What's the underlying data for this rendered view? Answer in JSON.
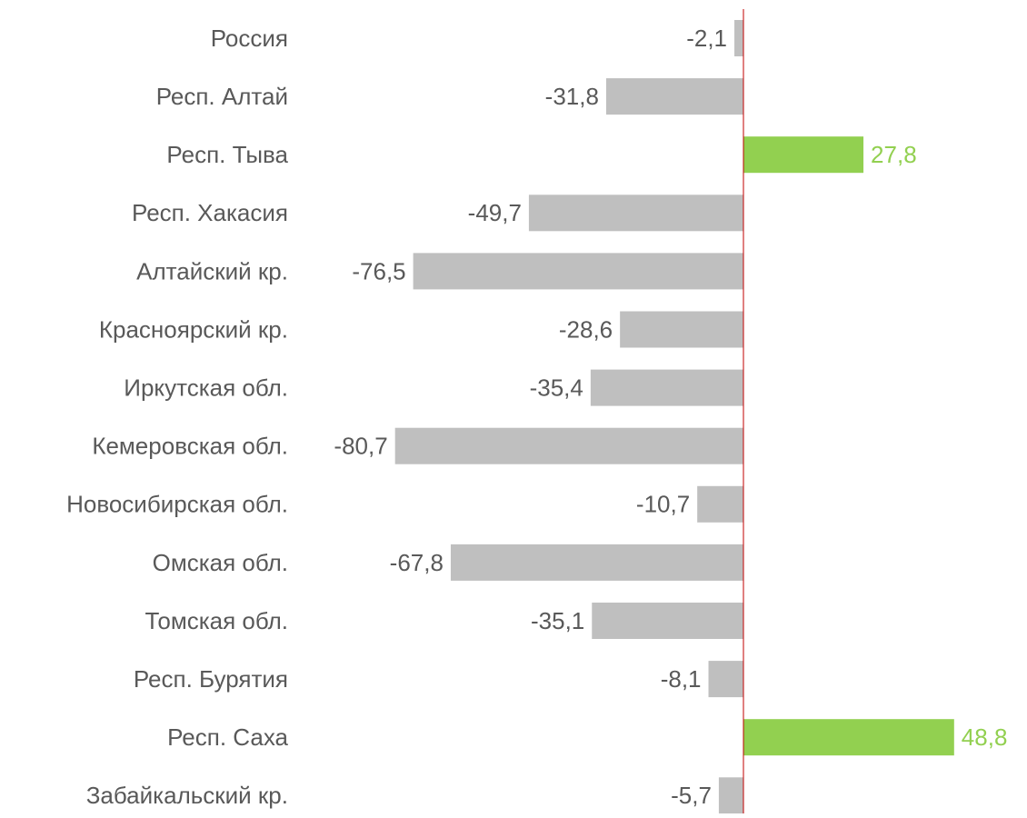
{
  "chart_data": {
    "type": "hbar",
    "categories": [
      "Россия",
      "Респ. Алтай",
      "Респ. Тыва",
      "Респ. Хакасия",
      "Алтайский кр.",
      "Красноярский кр.",
      "Иркутская обл.",
      "Кемеровская обл.",
      "Новосибирская обл.",
      "Омская обл.",
      "Томская обл.",
      "Респ. Бурятия",
      "Респ. Саха",
      "Забайкальский кр."
    ],
    "values": [
      -2.1,
      -31.8,
      27.8,
      -49.7,
      -76.5,
      -28.6,
      -35.4,
      -80.7,
      -10.7,
      -67.8,
      -35.1,
      -8.1,
      48.8,
      -5.7
    ],
    "value_labels": [
      "-2,1",
      "-31,8",
      "27,8",
      "-49,7",
      "-76,5",
      "-28,6",
      "-35,4",
      "-80,7",
      "-10,7",
      "-67,8",
      "-35,1",
      "-8,1",
      "48,8",
      "-5,7"
    ],
    "negative_color": "#bfbfbf",
    "positive_color": "#92d050",
    "zero_line_color": "#c00000",
    "xlim": [
      -100,
      60
    ]
  }
}
